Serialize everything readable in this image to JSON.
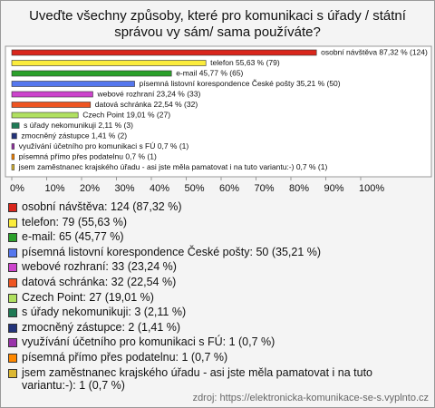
{
  "chart_data": {
    "type": "bar",
    "orientation": "horizontal",
    "title": "Uveďte všechny způsoby, které pro komunikaci s úřady / státní správou vy sám/ sama používáte?",
    "categories": [
      "osobní návštěva",
      "telefon",
      "e-mail",
      "písemná listovní korespondence České pošty",
      "webové rozhraní",
      "datová schránka",
      "Czech Point",
      "s úřady nekomunikuji",
      "zmocněný zástupce",
      "využívání účetního pro komunikaci s FÚ",
      "písemná přímo přes podatelnu",
      "jsem zaměstnanec krajského úřadu - asi jste měla pamatovat i na tuto variantu:-)"
    ],
    "values": [
      87.32,
      55.63,
      45.77,
      35.21,
      23.24,
      22.54,
      19.01,
      2.11,
      1.41,
      0.7,
      0.7,
      0.7
    ],
    "value_labels": [
      "osobní návštěva 87,32 % (124)",
      "telefon 55,63 % (79)",
      "e-mail 45,77 % (65)",
      "písemná listovní korespondence České pošty 35,21 % (50)",
      "webové rozhraní 23,24 % (33)",
      "datová schránka 22,54 % (32)",
      "Czech Point 19,01 % (27)",
      "s úřady nekomunikuji 2,11 % (3)",
      "zmocněný zástupce 1,41 % (2)",
      "využívání účetního pro komunikaci s FÚ 0,7 % (1)",
      "písemná přímo přes podatelnu 0,7 % (1)",
      "jsem zaměstnanec krajského úřadu - asi jste měla pamatovat i na tuto variantu:-) 0,7 % (1)"
    ],
    "legend": [
      "osobní návštěva: 124 (87,32 %)",
      "telefon: 79 (55,63 %)",
      "e-mail: 65 (45,77 %)",
      "písemná listovní korespondence České pošty: 50 (35,21 %)",
      "webové rozhraní: 33 (23,24 %)",
      "datová schránka: 32 (22,54 %)",
      "Czech Point: 27 (19,01 %)",
      "s úřady nekomunikuji: 3 (2,11 %)",
      "zmocněný zástupce: 2 (1,41 %)",
      "využívání účetního pro komunikaci s FÚ: 1 (0,7 %)",
      "písemná přímo přes podatelnu: 1 (0,7 %)",
      "jsem zaměstnanec krajského úřadu - asi jste měla pamatovat i na tuto variantu:-): 1 (0,7 %)"
    ],
    "colors": [
      "#d9261c",
      "#fbec3c",
      "#2ba02b",
      "#5577ee",
      "#cc44cc",
      "#ee5522",
      "#b0e060",
      "#1f7a55",
      "#22337a",
      "#9933aa",
      "#ff8800",
      "#dcb833"
    ],
    "xlim": [
      0,
      100
    ],
    "xticks": [
      {
        "value": 0,
        "label": "0%"
      },
      {
        "value": 10,
        "label": "10%"
      },
      {
        "value": 20,
        "label": "20%"
      },
      {
        "value": 30,
        "label": "30%"
      },
      {
        "value": 40,
        "label": "40%"
      },
      {
        "value": 50,
        "label": "50%"
      },
      {
        "value": 60,
        "label": "60%"
      },
      {
        "value": 70,
        "label": "70%"
      },
      {
        "value": 80,
        "label": "80%"
      },
      {
        "value": 90,
        "label": "90%"
      },
      {
        "value": 100,
        "label": "100%"
      }
    ],
    "source": "zdroj: https://elektronicka-komunikace-se-s.vyplnto.cz"
  }
}
